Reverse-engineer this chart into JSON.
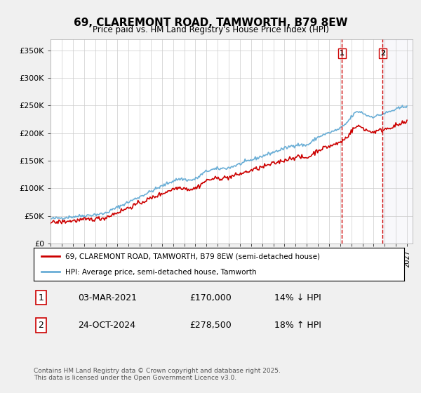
{
  "title": "69, CLAREMONT ROAD, TAMWORTH, B79 8EW",
  "subtitle": "Price paid vs. HM Land Registry's House Price Index (HPI)",
  "ylabel_ticks": [
    "£0",
    "£50K",
    "£100K",
    "£150K",
    "£200K",
    "£250K",
    "£300K",
    "£350K"
  ],
  "ytick_values": [
    0,
    50000,
    100000,
    150000,
    200000,
    250000,
    300000,
    350000
  ],
  "ylim": [
    0,
    370000
  ],
  "xlim_start": 1995.0,
  "xlim_end": 2027.5,
  "hpi_color": "#6aaed6",
  "price_color": "#cc0000",
  "vline1_color": "#cc0000",
  "vline2_color": "#cc0000",
  "vline1_x": 2021.17,
  "vline2_x": 2024.82,
  "marker1_label": "1",
  "marker2_label": "2",
  "legend_label1": "69, CLAREMONT ROAD, TAMWORTH, B79 8EW (semi-detached house)",
  "legend_label2": "HPI: Average price, semi-detached house, Tamworth",
  "annotation1_num": "1",
  "annotation1_date": "03-MAR-2021",
  "annotation1_price": "£170,000",
  "annotation1_hpi": "14% ↓ HPI",
  "annotation2_num": "2",
  "annotation2_date": "24-OCT-2024",
  "annotation2_price": "£278,500",
  "annotation2_hpi": "18% ↑ HPI",
  "footer": "Contains HM Land Registry data © Crown copyright and database right 2025.\nThis data is licensed under the Open Government Licence v3.0.",
  "background_color": "#f0f0f0",
  "plot_bg_color": "#ffffff"
}
